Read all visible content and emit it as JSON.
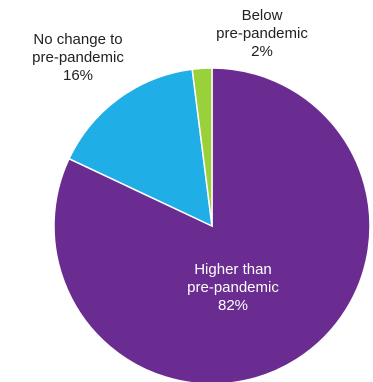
{
  "chart_data": {
    "type": "pie",
    "title": "",
    "slices": [
      {
        "label_lines": [
          "Higher than",
          "pre-pandemic"
        ],
        "pct_text": "82%",
        "value": 82,
        "color": "#6a2c91",
        "text_color": "#ffffff"
      },
      {
        "label_lines": [
          "No change to",
          "pre-pandemic"
        ],
        "pct_text": "16%",
        "value": 16,
        "color": "#1faee6",
        "text_color": "#222222"
      },
      {
        "label_lines": [
          "Below",
          "pre-pandemic"
        ],
        "pct_text": "2%",
        "value": 2,
        "color": "#9ad13a",
        "text_color": "#222222"
      }
    ],
    "start_angle_deg": 0,
    "direction": "clockwise"
  }
}
